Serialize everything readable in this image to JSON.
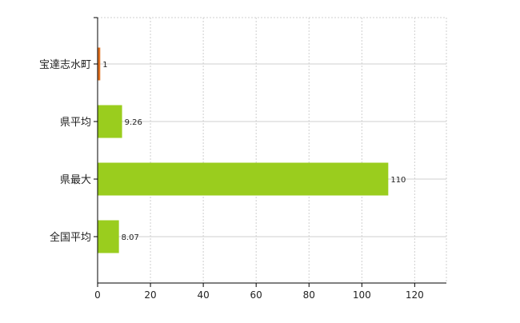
{
  "chart_data": {
    "type": "bar",
    "orientation": "horizontal",
    "title": "",
    "xlabel": "",
    "ylabel": "",
    "categories": [
      "宝達志水町",
      "県平均",
      "県最大",
      "全国平均"
    ],
    "values": [
      1,
      9.26,
      110,
      8.07
    ],
    "value_labels": [
      "1",
      "9.26",
      "110",
      "8.07"
    ],
    "bar_colors": [
      "#e07020",
      "#9acd1e",
      "#9acd1e",
      "#9acd1e"
    ],
    "xlim": [
      0,
      132
    ],
    "xticks": [
      0,
      20,
      40,
      60,
      80,
      100,
      120
    ],
    "xtick_labels": [
      "0",
      "20",
      "40",
      "60",
      "80",
      "100",
      "120"
    ],
    "grid": true,
    "legend": "none"
  }
}
